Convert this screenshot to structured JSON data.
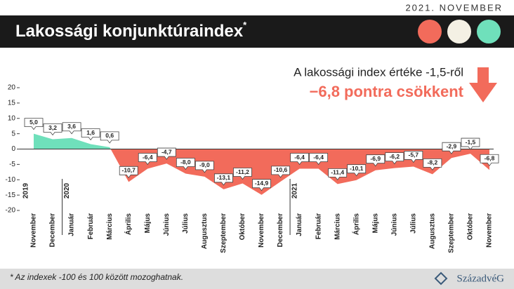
{
  "header": {
    "date": "2021. NOVEMBER",
    "title": "Lakossági konjunktúraindex",
    "title_mark": "*"
  },
  "annotation": {
    "line1": "A lakossági index értéke -1,5-ről",
    "line2": "−6,8 pontra csökkent"
  },
  "footer": {
    "note": "* Az indexek -100 és 100 között mozoghatnak.",
    "logo": "SzázadvéG"
  },
  "chart_data": {
    "type": "area",
    "categories": [
      "November",
      "December",
      "Január",
      "Február",
      "Március",
      "Április",
      "Május",
      "Június",
      "Július",
      "Augusztus",
      "Szeptember",
      "Október",
      "November",
      "December",
      "Január",
      "Február",
      "Március",
      "Április",
      "Május",
      "Június",
      "Július",
      "Augusztus",
      "Szeptember",
      "Október",
      "November"
    ],
    "years": [
      "2019",
      null,
      "2020",
      null,
      null,
      null,
      null,
      null,
      null,
      null,
      null,
      null,
      null,
      null,
      "2021",
      null,
      null,
      null,
      null,
      null,
      null,
      null,
      null,
      null,
      null
    ],
    "values": [
      5.0,
      3.2,
      3.6,
      1.6,
      0.6,
      -10.7,
      -6.4,
      -4.7,
      -8.0,
      -9.0,
      -13.1,
      -11.2,
      -14.9,
      -10.6,
      -6.4,
      -6.4,
      -11.4,
      -10.1,
      -6.9,
      -6.2,
      -5.7,
      -8.2,
      -2.9,
      -1.5,
      -6.8
    ],
    "value_labels": [
      "5,0",
      "3,2",
      "3,6",
      "1,6",
      "0,6",
      "-10,7",
      "-6,4",
      "-4,7",
      "-8,0",
      "-9,0",
      "-13,1",
      "-11,2",
      "-14,9",
      "-10,6",
      "-6,4",
      "-6,4",
      "-11,4",
      "-10,1",
      "-6,9",
      "-6,2",
      "-5,7",
      "-8,2",
      "-2,9",
      "-1,5",
      "-6,8"
    ],
    "positive_color": "#6fe0bb",
    "negative_color": "#f26b5b",
    "ylim": [
      -20,
      20
    ],
    "yticks": [
      -20,
      -15,
      -10,
      -5,
      0,
      5,
      10,
      15,
      20
    ]
  }
}
